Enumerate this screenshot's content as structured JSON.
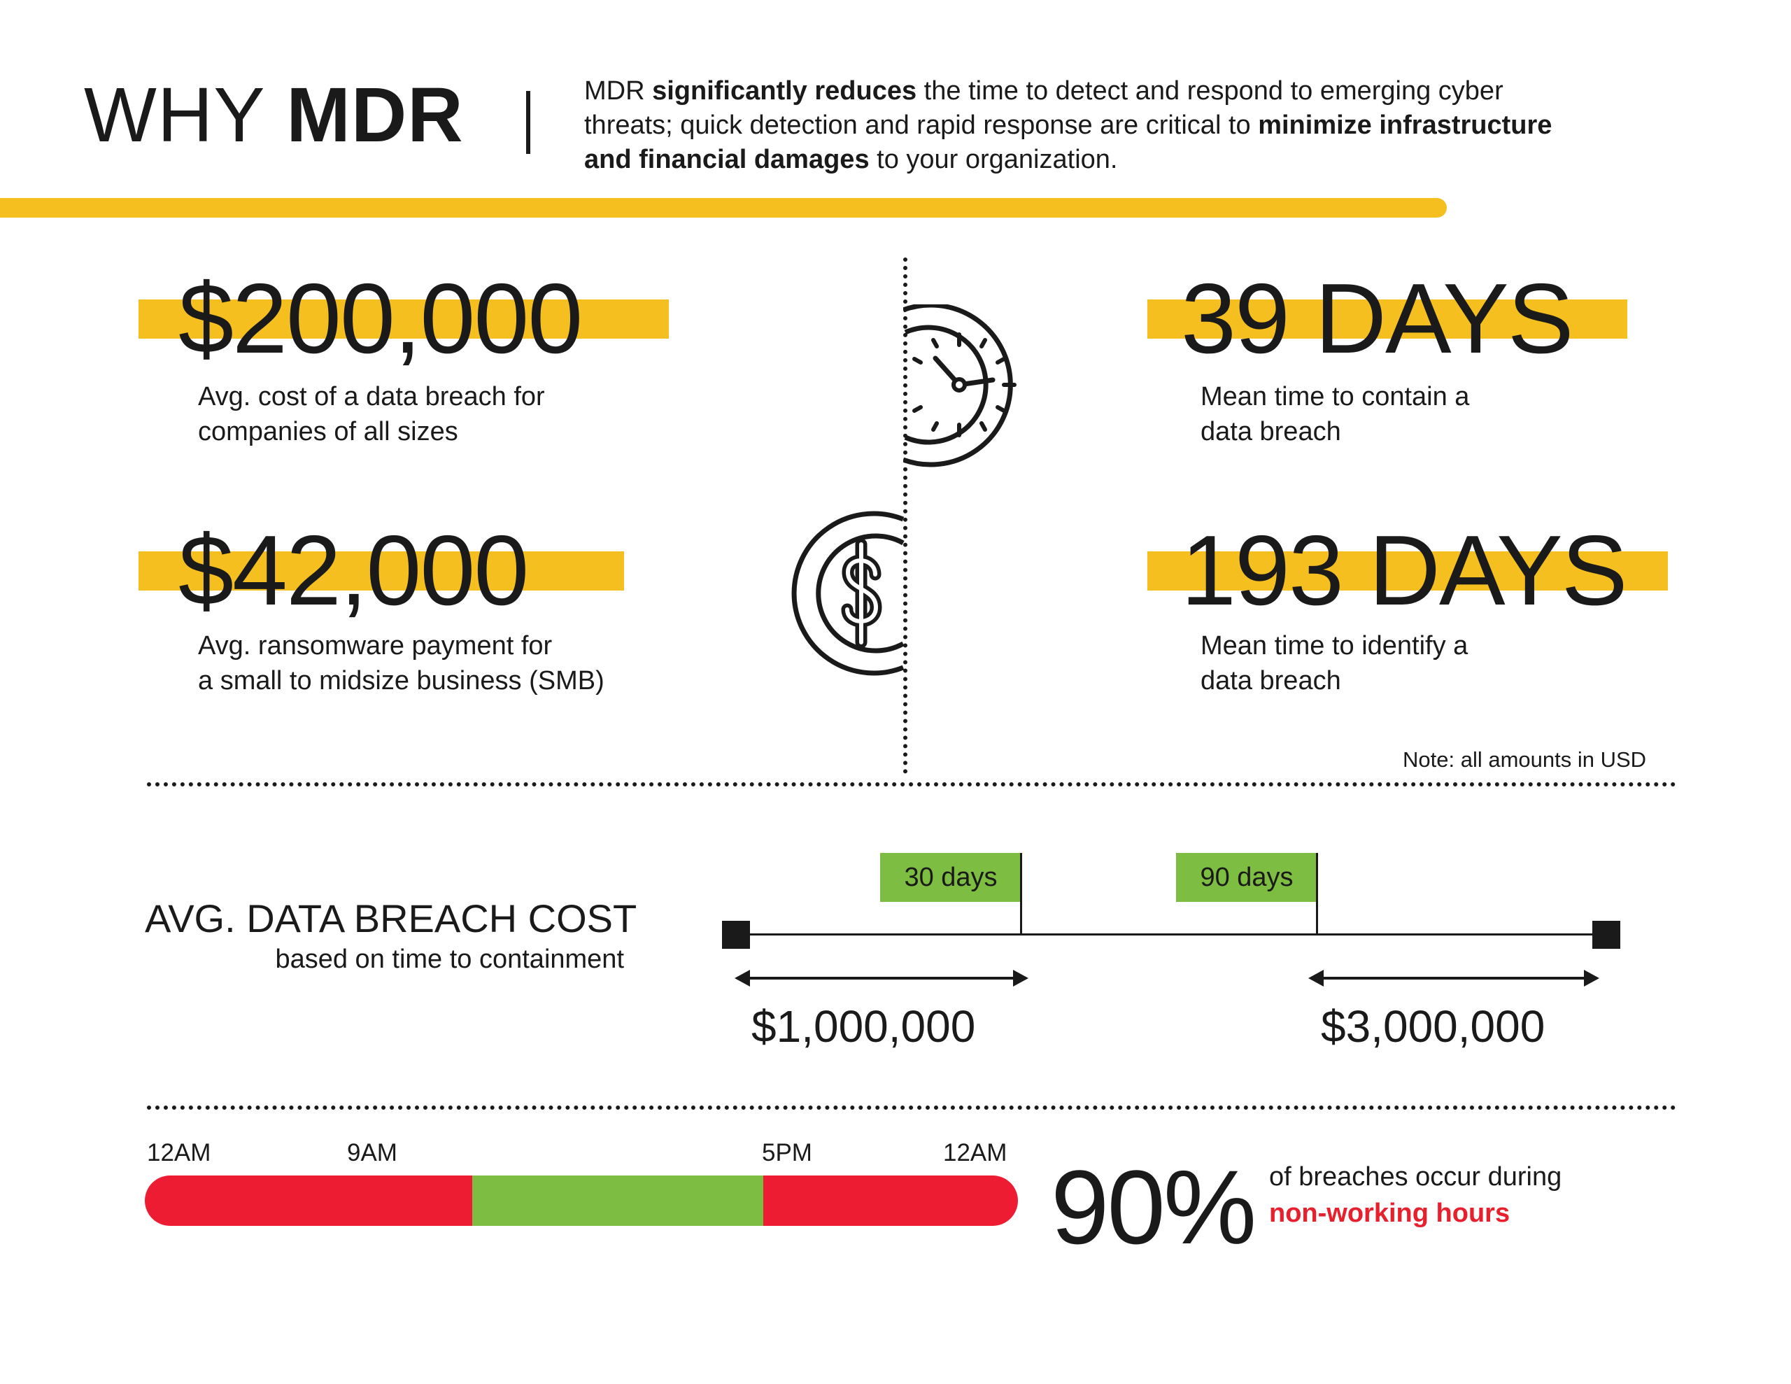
{
  "header": {
    "title_light": "WHY",
    "title_bold": "MDR",
    "intro": {
      "t1": "MDR ",
      "b1": "significantly reduces",
      "t2": " the time to detect and respond to emerging cyber threats; quick detection and rapid response are critical to ",
      "b2": "minimize infrastructure and financial damages",
      "t3": " to your organization."
    }
  },
  "stats": [
    {
      "value": "$200,000",
      "caption_line1": "Avg. cost of a data breach for",
      "caption_line2": "companies of all sizes"
    },
    {
      "value": "$42,000",
      "caption_line1": "Avg. ransomware payment for",
      "caption_line2": "a small to midsize business (SMB)"
    },
    {
      "value": "39 DAYS",
      "caption_line1": "Mean time to contain a",
      "caption_line2": "data breach"
    },
    {
      "value": "193 DAYS",
      "caption_line1": "Mean time to identify a",
      "caption_line2": "data breach"
    }
  ],
  "icons": {
    "clock": "clock-icon",
    "coin": "dollar-coin-icon"
  },
  "note": "Note: all amounts in USD",
  "breach_cost": {
    "title": "AVG. DATA BREACH COST",
    "subtitle": "based on time to containment",
    "markers": [
      {
        "label": "30 days",
        "cost": "$1,000,000"
      },
      {
        "label": "90 days",
        "cost": "$3,000,000"
      }
    ]
  },
  "hours": {
    "labels": [
      "12AM",
      "9AM",
      "5PM",
      "12AM"
    ],
    "segments": [
      {
        "from_hour": 0,
        "to_hour": 9,
        "color": "#ee1c33"
      },
      {
        "from_hour": 9,
        "to_hour": 17,
        "color": "#7dbd42"
      },
      {
        "from_hour": 17,
        "to_hour": 24,
        "color": "#ee1c33"
      }
    ],
    "percent": "90%",
    "text_line1": "of breaches occur during",
    "text_line2": "non-working hours"
  },
  "colors": {
    "accent_yellow": "#f5c01f",
    "green": "#7dbd42",
    "red": "#ee1c33",
    "ink": "#1a1a1a"
  }
}
